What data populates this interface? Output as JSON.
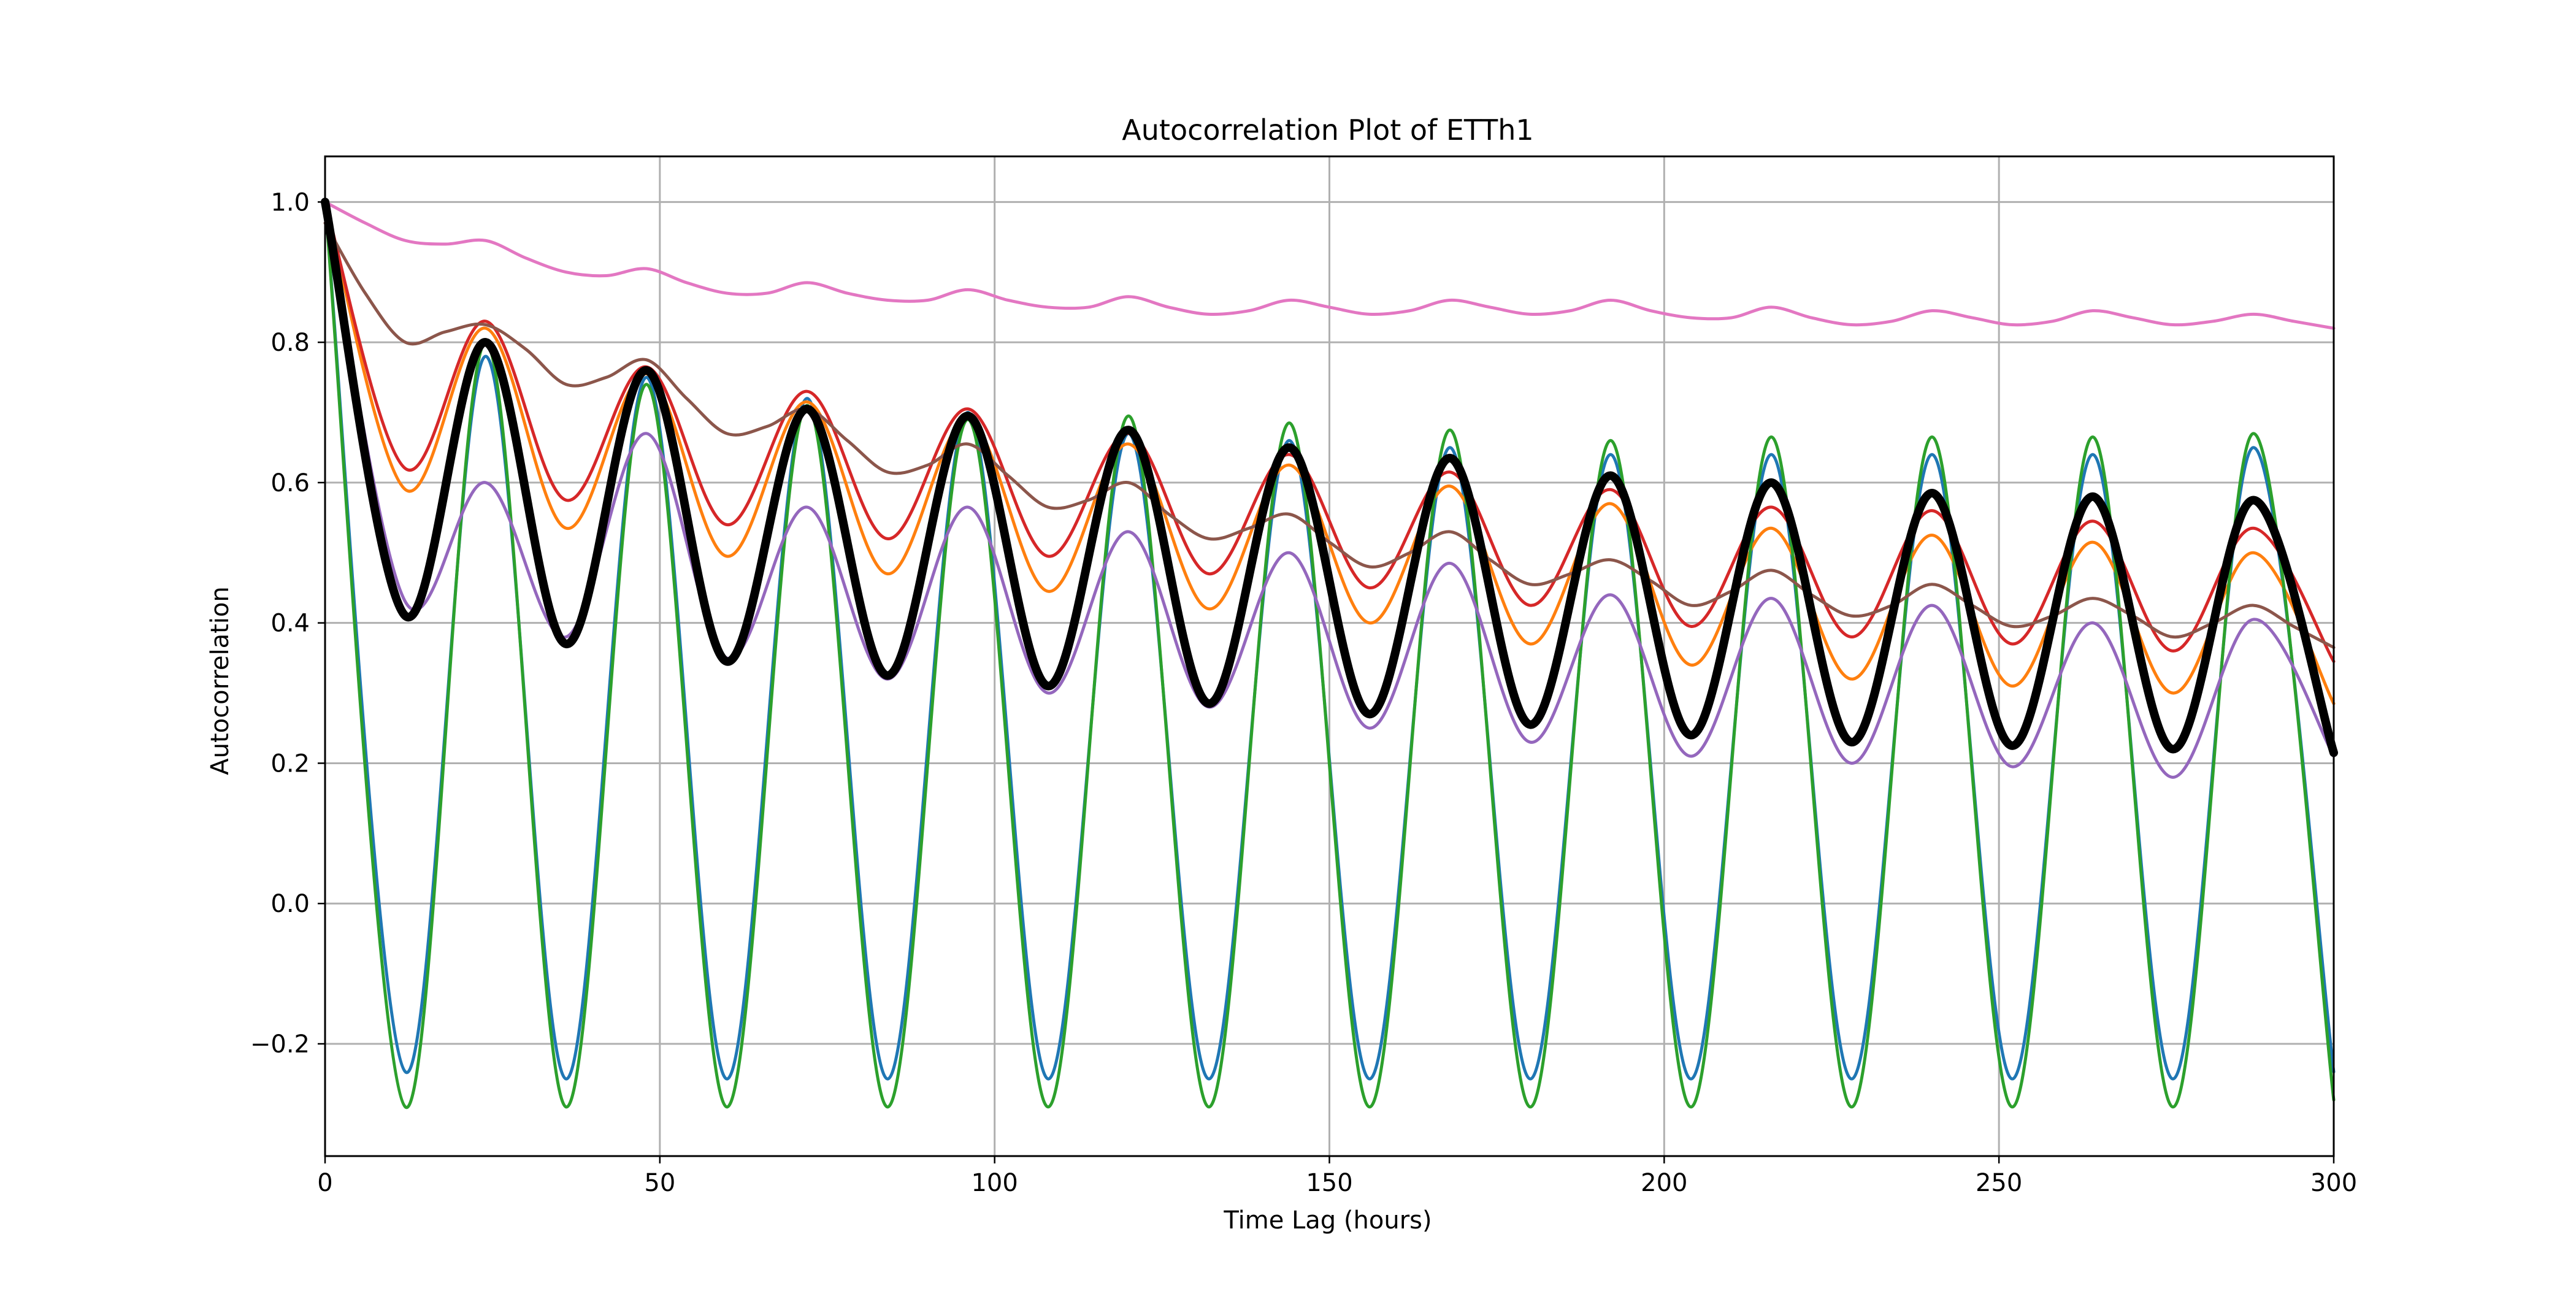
{
  "chart_data": {
    "type": "line",
    "title": "Autocorrelation Plot of ETTh1",
    "xlabel": "Time Lag (hours)",
    "ylabel": "Autocorrelation",
    "xlim": [
      0,
      300
    ],
    "ylim": [
      -0.36,
      1.065
    ],
    "xticks": [
      0,
      50,
      100,
      150,
      200,
      250,
      300
    ],
    "xtick_labels": [
      "0",
      "50",
      "100",
      "150",
      "200",
      "250",
      "300"
    ],
    "yticks": [
      -0.2,
      0.0,
      0.2,
      0.4,
      0.6,
      0.8,
      1.0
    ],
    "ytick_labels": [
      "−0.2",
      "0.0",
      "0.2",
      "0.4",
      "0.6",
      "0.8",
      "1.0"
    ],
    "grid": true,
    "period_hours": 24,
    "series": [
      {
        "color": "#1f77b4",
        "line_width": "normal",
        "points": [
          [
            0,
            1.0
          ],
          [
            12,
            -0.24
          ],
          [
            24,
            0.78
          ],
          [
            36,
            -0.25
          ],
          [
            48,
            0.75
          ],
          [
            60,
            -0.25
          ],
          [
            72,
            0.72
          ],
          [
            84,
            -0.25
          ],
          [
            96,
            0.7
          ],
          [
            108,
            -0.25
          ],
          [
            120,
            0.67
          ],
          [
            132,
            -0.25
          ],
          [
            144,
            0.66
          ],
          [
            156,
            -0.25
          ],
          [
            168,
            0.65
          ],
          [
            180,
            -0.25
          ],
          [
            192,
            0.64
          ],
          [
            204,
            -0.25
          ],
          [
            216,
            0.64
          ],
          [
            228,
            -0.25
          ],
          [
            240,
            0.64
          ],
          [
            252,
            -0.25
          ],
          [
            264,
            0.64
          ],
          [
            276,
            -0.25
          ],
          [
            288,
            0.65
          ],
          [
            300,
            -0.24
          ]
        ]
      },
      {
        "color": "#ff7f0e",
        "line_width": "normal",
        "points": [
          [
            0,
            1.0
          ],
          [
            12,
            0.59
          ],
          [
            24,
            0.82
          ],
          [
            36,
            0.535
          ],
          [
            48,
            0.755
          ],
          [
            60,
            0.495
          ],
          [
            72,
            0.715
          ],
          [
            84,
            0.47
          ],
          [
            96,
            0.69
          ],
          [
            108,
            0.445
          ],
          [
            120,
            0.655
          ],
          [
            132,
            0.42
          ],
          [
            144,
            0.625
          ],
          [
            156,
            0.4
          ],
          [
            168,
            0.595
          ],
          [
            180,
            0.37
          ],
          [
            192,
            0.57
          ],
          [
            204,
            0.34
          ],
          [
            216,
            0.535
          ],
          [
            228,
            0.32
          ],
          [
            240,
            0.525
          ],
          [
            252,
            0.31
          ],
          [
            264,
            0.515
          ],
          [
            276,
            0.3
          ],
          [
            288,
            0.5
          ],
          [
            300,
            0.285
          ]
        ]
      },
      {
        "color": "#2ca02c",
        "line_width": "normal",
        "points": [
          [
            0,
            1.0
          ],
          [
            12,
            -0.29
          ],
          [
            24,
            0.8
          ],
          [
            36,
            -0.29
          ],
          [
            48,
            0.74
          ],
          [
            60,
            -0.29
          ],
          [
            72,
            0.71
          ],
          [
            84,
            -0.29
          ],
          [
            96,
            0.69
          ],
          [
            108,
            -0.29
          ],
          [
            120,
            0.695
          ],
          [
            132,
            -0.29
          ],
          [
            144,
            0.685
          ],
          [
            156,
            -0.29
          ],
          [
            168,
            0.675
          ],
          [
            180,
            -0.29
          ],
          [
            192,
            0.66
          ],
          [
            204,
            -0.29
          ],
          [
            216,
            0.665
          ],
          [
            228,
            -0.29
          ],
          [
            240,
            0.665
          ],
          [
            252,
            -0.29
          ],
          [
            264,
            0.665
          ],
          [
            276,
            -0.29
          ],
          [
            288,
            0.67
          ],
          [
            300,
            -0.28
          ]
        ]
      },
      {
        "color": "#d62728",
        "line_width": "normal",
        "points": [
          [
            0,
            1.0
          ],
          [
            12,
            0.62
          ],
          [
            24,
            0.83
          ],
          [
            36,
            0.575
          ],
          [
            48,
            0.765
          ],
          [
            60,
            0.54
          ],
          [
            72,
            0.73
          ],
          [
            84,
            0.52
          ],
          [
            96,
            0.705
          ],
          [
            108,
            0.495
          ],
          [
            120,
            0.67
          ],
          [
            132,
            0.47
          ],
          [
            144,
            0.64
          ],
          [
            156,
            0.45
          ],
          [
            168,
            0.615
          ],
          [
            180,
            0.425
          ],
          [
            192,
            0.59
          ],
          [
            204,
            0.395
          ],
          [
            216,
            0.565
          ],
          [
            228,
            0.38
          ],
          [
            240,
            0.56
          ],
          [
            252,
            0.37
          ],
          [
            264,
            0.545
          ],
          [
            276,
            0.36
          ],
          [
            288,
            0.535
          ],
          [
            300,
            0.345
          ]
        ]
      },
      {
        "color": "#9467bd",
        "line_width": "normal",
        "points": [
          [
            0,
            1.0
          ],
          [
            12,
            0.43
          ],
          [
            24,
            0.6
          ],
          [
            36,
            0.38
          ],
          [
            48,
            0.67
          ],
          [
            60,
            0.35
          ],
          [
            72,
            0.565
          ],
          [
            84,
            0.32
          ],
          [
            96,
            0.565
          ],
          [
            108,
            0.3
          ],
          [
            120,
            0.53
          ],
          [
            132,
            0.28
          ],
          [
            144,
            0.5
          ],
          [
            156,
            0.25
          ],
          [
            168,
            0.485
          ],
          [
            180,
            0.23
          ],
          [
            192,
            0.44
          ],
          [
            204,
            0.21
          ],
          [
            216,
            0.435
          ],
          [
            228,
            0.2
          ],
          [
            240,
            0.425
          ],
          [
            252,
            0.195
          ],
          [
            264,
            0.4
          ],
          [
            276,
            0.18
          ],
          [
            288,
            0.405
          ],
          [
            300,
            0.21
          ]
        ]
      },
      {
        "color": "#8c564b",
        "line_width": "normal",
        "points": [
          [
            0,
            0.97
          ],
          [
            6,
            0.87
          ],
          [
            12,
            0.8
          ],
          [
            18,
            0.815
          ],
          [
            24,
            0.825
          ],
          [
            30,
            0.79
          ],
          [
            36,
            0.74
          ],
          [
            42,
            0.75
          ],
          [
            48,
            0.775
          ],
          [
            54,
            0.72
          ],
          [
            60,
            0.67
          ],
          [
            66,
            0.68
          ],
          [
            72,
            0.705
          ],
          [
            78,
            0.66
          ],
          [
            84,
            0.615
          ],
          [
            90,
            0.625
          ],
          [
            96,
            0.655
          ],
          [
            102,
            0.61
          ],
          [
            108,
            0.565
          ],
          [
            114,
            0.575
          ],
          [
            120,
            0.6
          ],
          [
            126,
            0.555
          ],
          [
            132,
            0.52
          ],
          [
            138,
            0.535
          ],
          [
            144,
            0.555
          ],
          [
            150,
            0.515
          ],
          [
            156,
            0.48
          ],
          [
            162,
            0.5
          ],
          [
            168,
            0.53
          ],
          [
            174,
            0.49
          ],
          [
            180,
            0.455
          ],
          [
            186,
            0.47
          ],
          [
            192,
            0.49
          ],
          [
            198,
            0.46
          ],
          [
            204,
            0.425
          ],
          [
            210,
            0.445
          ],
          [
            216,
            0.475
          ],
          [
            222,
            0.44
          ],
          [
            228,
            0.41
          ],
          [
            234,
            0.425
          ],
          [
            240,
            0.455
          ],
          [
            246,
            0.425
          ],
          [
            252,
            0.395
          ],
          [
            258,
            0.41
          ],
          [
            264,
            0.435
          ],
          [
            270,
            0.41
          ],
          [
            276,
            0.38
          ],
          [
            282,
            0.4
          ],
          [
            288,
            0.425
          ],
          [
            294,
            0.395
          ],
          [
            300,
            0.365
          ]
        ]
      },
      {
        "color": "#e377c2",
        "line_width": "normal",
        "points": [
          [
            0,
            1.0
          ],
          [
            6,
            0.97
          ],
          [
            12,
            0.945
          ],
          [
            18,
            0.94
          ],
          [
            24,
            0.945
          ],
          [
            30,
            0.92
          ],
          [
            36,
            0.9
          ],
          [
            42,
            0.895
          ],
          [
            48,
            0.905
          ],
          [
            54,
            0.885
          ],
          [
            60,
            0.87
          ],
          [
            66,
            0.87
          ],
          [
            72,
            0.885
          ],
          [
            78,
            0.87
          ],
          [
            84,
            0.86
          ],
          [
            90,
            0.86
          ],
          [
            96,
            0.875
          ],
          [
            102,
            0.86
          ],
          [
            108,
            0.85
          ],
          [
            114,
            0.85
          ],
          [
            120,
            0.865
          ],
          [
            126,
            0.85
          ],
          [
            132,
            0.84
          ],
          [
            138,
            0.845
          ],
          [
            144,
            0.86
          ],
          [
            150,
            0.85
          ],
          [
            156,
            0.84
          ],
          [
            162,
            0.845
          ],
          [
            168,
            0.86
          ],
          [
            174,
            0.85
          ],
          [
            180,
            0.84
          ],
          [
            186,
            0.845
          ],
          [
            192,
            0.86
          ],
          [
            198,
            0.845
          ],
          [
            204,
            0.835
          ],
          [
            210,
            0.835
          ],
          [
            216,
            0.85
          ],
          [
            222,
            0.835
          ],
          [
            228,
            0.825
          ],
          [
            234,
            0.83
          ],
          [
            240,
            0.845
          ],
          [
            246,
            0.835
          ],
          [
            252,
            0.825
          ],
          [
            258,
            0.83
          ],
          [
            264,
            0.845
          ],
          [
            270,
            0.835
          ],
          [
            276,
            0.825
          ],
          [
            282,
            0.83
          ],
          [
            288,
            0.84
          ],
          [
            294,
            0.83
          ],
          [
            300,
            0.82
          ]
        ]
      },
      {
        "color": "#000000",
        "line_width": "thick",
        "points": [
          [
            0,
            1.0
          ],
          [
            12,
            0.41
          ],
          [
            24,
            0.8
          ],
          [
            36,
            0.37
          ],
          [
            48,
            0.76
          ],
          [
            60,
            0.345
          ],
          [
            72,
            0.705
          ],
          [
            84,
            0.325
          ],
          [
            96,
            0.695
          ],
          [
            108,
            0.31
          ],
          [
            120,
            0.675
          ],
          [
            132,
            0.285
          ],
          [
            144,
            0.65
          ],
          [
            156,
            0.27
          ],
          [
            168,
            0.635
          ],
          [
            180,
            0.255
          ],
          [
            192,
            0.61
          ],
          [
            204,
            0.24
          ],
          [
            216,
            0.6
          ],
          [
            228,
            0.23
          ],
          [
            240,
            0.585
          ],
          [
            252,
            0.225
          ],
          [
            264,
            0.58
          ],
          [
            276,
            0.22
          ],
          [
            288,
            0.575
          ],
          [
            300,
            0.215
          ]
        ]
      }
    ]
  }
}
